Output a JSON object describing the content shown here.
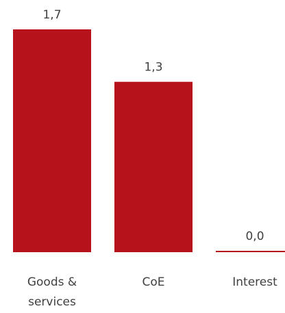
{
  "chart_data": {
    "type": "bar",
    "categories": [
      [
        "Goods &",
        "services"
      ],
      [
        "CoE"
      ],
      [
        "Interest"
      ]
    ],
    "values": [
      1.7,
      1.3,
      0.0
    ],
    "value_labels": [
      "1,7",
      "1,3",
      "0,0"
    ],
    "bar_color": "#B5121B",
    "ylim": [
      0,
      1.7
    ],
    "grid": false,
    "legend": "none"
  }
}
